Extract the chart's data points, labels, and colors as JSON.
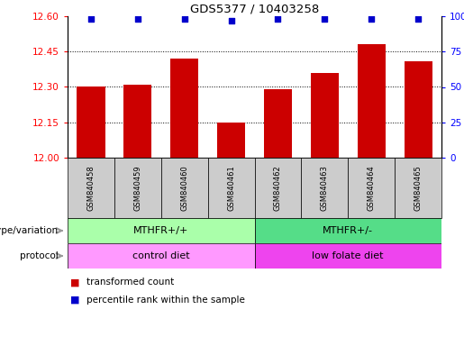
{
  "title": "GDS5377 / 10403258",
  "samples": [
    "GSM840458",
    "GSM840459",
    "GSM840460",
    "GSM840461",
    "GSM840462",
    "GSM840463",
    "GSM840464",
    "GSM840465"
  ],
  "bar_values": [
    12.3,
    12.31,
    12.42,
    12.15,
    12.29,
    12.36,
    12.48,
    12.41
  ],
  "percentile_values": [
    98,
    98,
    98,
    97,
    98,
    98,
    98,
    98
  ],
  "ylim_left": [
    12.0,
    12.6
  ],
  "ylim_right": [
    0,
    100
  ],
  "yticks_left": [
    12.0,
    12.15,
    12.3,
    12.45,
    12.6
  ],
  "yticks_right": [
    0,
    25,
    50,
    75,
    100
  ],
  "bar_color": "#cc0000",
  "dot_color": "#0000cc",
  "genotype_groups": [
    {
      "label": "MTHFR+/+",
      "start": 0,
      "end": 4,
      "color": "#aaffaa"
    },
    {
      "label": "MTHFR+/-",
      "start": 4,
      "end": 8,
      "color": "#55dd88"
    }
  ],
  "protocol_groups": [
    {
      "label": "control diet",
      "start": 0,
      "end": 4,
      "color": "#ff99ff"
    },
    {
      "label": "low folate diet",
      "start": 4,
      "end": 8,
      "color": "#ee44ee"
    }
  ],
  "legend_items": [
    {
      "color": "#cc0000",
      "label": "transformed count"
    },
    {
      "color": "#0000cc",
      "label": "percentile rank within the sample"
    }
  ],
  "tick_label_area_color": "#cccccc",
  "label_left": [
    "genotype/variation",
    "protocol"
  ],
  "arrow_color": "#999999"
}
